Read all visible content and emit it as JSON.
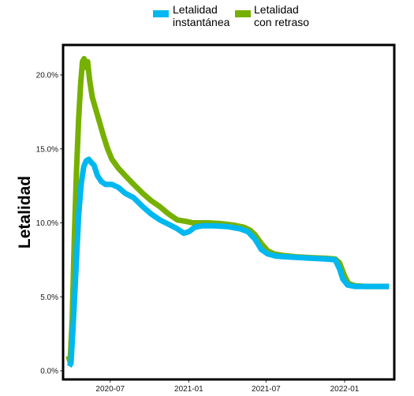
{
  "chart_data": {
    "type": "line",
    "title": "",
    "xlabel": "",
    "ylabel": "Letalidad",
    "grid": false,
    "legend_position": "top",
    "xlim": [
      "2020-03-20",
      "2022-04-20"
    ],
    "ylim": [
      0,
      21.5
    ],
    "x_ticks": [
      {
        "date": "2020-07-01",
        "label": "2020-07"
      },
      {
        "date": "2021-01-01",
        "label": "2021-01"
      },
      {
        "date": "2021-07-01",
        "label": "2021-07"
      },
      {
        "date": "2022-01-01",
        "label": "2022-01"
      }
    ],
    "y_ticks": [
      {
        "value": 0,
        "label": "0.0%"
      },
      {
        "value": 5,
        "label": "5.0%"
      },
      {
        "value": 10,
        "label": "10.0%"
      },
      {
        "value": 15,
        "label": "15.0%"
      },
      {
        "value": 20,
        "label": "20.0%"
      }
    ],
    "series": [
      {
        "name": "Letalidad con retraso",
        "legend_lines": [
          "Letalidad",
          "con retraso"
        ],
        "color": "#76b000",
        "points": [
          [
            "2020-03-25",
            1.0
          ],
          [
            "2020-03-29",
            0.6
          ],
          [
            "2020-04-03",
            3.5
          ],
          [
            "2020-04-08",
            9.0
          ],
          [
            "2020-04-13",
            13.5
          ],
          [
            "2020-04-18",
            17.0
          ],
          [
            "2020-04-23",
            19.5
          ],
          [
            "2020-04-27",
            20.9
          ],
          [
            "2020-05-01",
            21.1
          ],
          [
            "2020-05-05",
            20.5
          ],
          [
            "2020-05-09",
            20.9
          ],
          [
            "2020-05-14",
            19.6
          ],
          [
            "2020-05-20",
            18.5
          ],
          [
            "2020-05-27",
            17.8
          ],
          [
            "2020-06-05",
            16.9
          ],
          [
            "2020-06-15",
            15.9
          ],
          [
            "2020-06-25",
            15.0
          ],
          [
            "2020-07-05",
            14.3
          ],
          [
            "2020-07-20",
            13.7
          ],
          [
            "2020-08-05",
            13.2
          ],
          [
            "2020-08-25",
            12.6
          ],
          [
            "2020-09-15",
            12.0
          ],
          [
            "2020-10-05",
            11.5
          ],
          [
            "2020-10-25",
            11.1
          ],
          [
            "2020-11-15",
            10.6
          ],
          [
            "2020-12-05",
            10.2
          ],
          [
            "2020-12-25",
            10.1
          ],
          [
            "2021-01-10",
            10.0
          ],
          [
            "2021-01-25",
            10.0
          ],
          [
            "2021-02-15",
            10.0
          ],
          [
            "2021-03-15",
            9.95
          ],
          [
            "2021-04-15",
            9.85
          ],
          [
            "2021-05-10",
            9.7
          ],
          [
            "2021-05-25",
            9.5
          ],
          [
            "2021-06-05",
            9.2
          ],
          [
            "2021-06-20",
            8.6
          ],
          [
            "2021-07-05",
            8.1
          ],
          [
            "2021-07-20",
            7.9
          ],
          [
            "2021-08-10",
            7.8
          ],
          [
            "2021-09-10",
            7.7
          ],
          [
            "2021-10-15",
            7.65
          ],
          [
            "2021-11-20",
            7.6
          ],
          [
            "2021-12-10",
            7.55
          ],
          [
            "2021-12-20",
            7.3
          ],
          [
            "2022-01-01",
            6.4
          ],
          [
            "2022-01-10",
            5.9
          ],
          [
            "2022-01-25",
            5.75
          ],
          [
            "2022-02-20",
            5.7
          ],
          [
            "2022-03-20",
            5.7
          ],
          [
            "2022-04-15",
            5.7
          ]
        ]
      },
      {
        "name": "Letalidad instantánea",
        "legend_lines": [
          "Letalidad",
          "instantánea"
        ],
        "color": "#00b8f0",
        "points": [
          [
            "2020-03-27",
            0.3
          ],
          [
            "2020-03-31",
            0.5
          ],
          [
            "2020-04-05",
            3.0
          ],
          [
            "2020-04-12",
            7.0
          ],
          [
            "2020-04-18",
            10.5
          ],
          [
            "2020-04-24",
            12.6
          ],
          [
            "2020-04-30",
            13.8
          ],
          [
            "2020-05-06",
            14.2
          ],
          [
            "2020-05-12",
            14.3
          ],
          [
            "2020-05-17",
            14.1
          ],
          [
            "2020-05-24",
            13.9
          ],
          [
            "2020-06-01",
            13.2
          ],
          [
            "2020-06-10",
            12.8
          ],
          [
            "2020-06-20",
            12.6
          ],
          [
            "2020-07-05",
            12.6
          ],
          [
            "2020-07-20",
            12.4
          ],
          [
            "2020-08-05",
            12.0
          ],
          [
            "2020-08-25",
            11.7
          ],
          [
            "2020-09-15",
            11.1
          ],
          [
            "2020-10-05",
            10.6
          ],
          [
            "2020-10-25",
            10.2
          ],
          [
            "2020-11-15",
            9.9
          ],
          [
            "2020-12-05",
            9.6
          ],
          [
            "2020-12-20",
            9.3
          ],
          [
            "2021-01-01",
            9.4
          ],
          [
            "2021-01-15",
            9.7
          ],
          [
            "2021-02-01",
            9.8
          ],
          [
            "2021-03-01",
            9.8
          ],
          [
            "2021-04-01",
            9.75
          ],
          [
            "2021-05-01",
            9.6
          ],
          [
            "2021-05-20",
            9.4
          ],
          [
            "2021-06-05",
            8.9
          ],
          [
            "2021-06-20",
            8.2
          ],
          [
            "2021-07-05",
            7.9
          ],
          [
            "2021-07-25",
            7.75
          ],
          [
            "2021-08-20",
            7.7
          ],
          [
            "2021-09-20",
            7.65
          ],
          [
            "2021-10-20",
            7.6
          ],
          [
            "2021-11-20",
            7.55
          ],
          [
            "2021-12-10",
            7.5
          ],
          [
            "2021-12-20",
            6.9
          ],
          [
            "2021-12-28",
            6.2
          ],
          [
            "2022-01-08",
            5.8
          ],
          [
            "2022-01-25",
            5.7
          ],
          [
            "2022-02-20",
            5.7
          ],
          [
            "2022-03-20",
            5.7
          ],
          [
            "2022-04-15",
            5.7
          ]
        ]
      }
    ]
  }
}
